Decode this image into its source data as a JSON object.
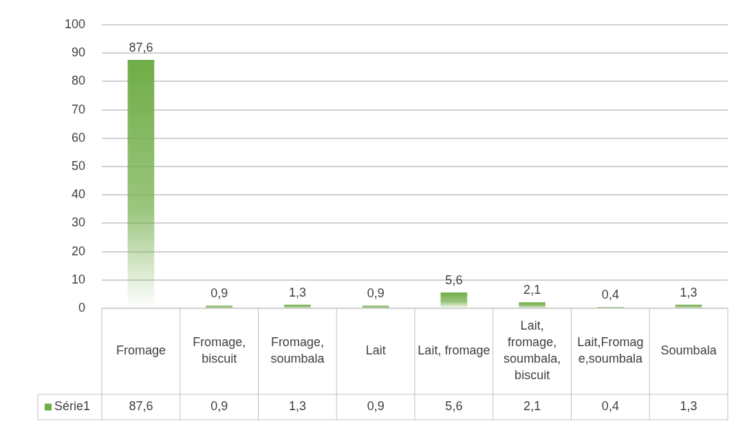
{
  "chart_data": {
    "type": "bar",
    "categories": [
      "Fromage",
      "Fromage, biscuit",
      "Fromage, soumbala",
      "Lait",
      "Lait, fromage",
      "Lait, fromage, soumbala, biscuit",
      "Lait,Fromage,soumbala",
      "Soumbala"
    ],
    "series": [
      {
        "name": "Série1",
        "color": "#70ad47",
        "values": [
          87.6,
          0.9,
          1.3,
          0.9,
          5.6,
          2.1,
          0.4,
          1.3
        ],
        "value_labels": [
          "87,6",
          "0,9",
          "1,3",
          "0,9",
          "5,6",
          "2,1",
          "0,4",
          "1,3"
        ]
      }
    ],
    "ylim": [
      0,
      100
    ],
    "yticks": [
      0,
      10,
      20,
      30,
      40,
      50,
      60,
      70,
      80,
      90,
      100
    ],
    "grid": "y",
    "legend": "bottom"
  }
}
